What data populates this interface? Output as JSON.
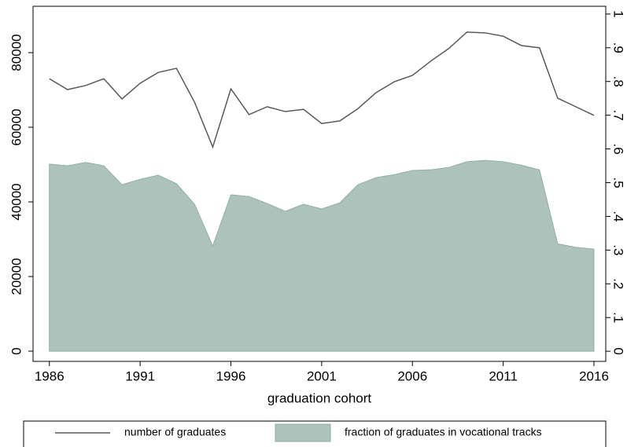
{
  "chart_data": {
    "type": "line-area",
    "x_label": "graduation cohort",
    "x": [
      1986,
      1987,
      1988,
      1989,
      1990,
      1991,
      1992,
      1993,
      1994,
      1995,
      1996,
      1997,
      1998,
      1999,
      2000,
      2001,
      2002,
      2003,
      2004,
      2005,
      2006,
      2007,
      2008,
      2009,
      2010,
      2011,
      2012,
      2013,
      2014,
      2015,
      2016
    ],
    "series": [
      {
        "name": "number of graduates",
        "kind": "line",
        "color": "#595959",
        "values": [
          73000,
          70100,
          71200,
          73000,
          67600,
          71800,
          74700,
          75800,
          66700,
          54700,
          70300,
          63400,
          65500,
          64200,
          64800,
          61000,
          61700,
          65000,
          69300,
          72200,
          73900,
          77700,
          81100,
          85500,
          85300,
          84400,
          81900,
          81300,
          67800,
          65500,
          63200
        ]
      },
      {
        "name": "fraction of graduates in vocational tracks",
        "kind": "area",
        "axis": "y2",
        "color": "#acc2bb",
        "values": [
          0.555,
          0.55,
          0.56,
          0.55,
          0.494,
          0.51,
          0.522,
          0.497,
          0.436,
          0.312,
          0.464,
          0.459,
          0.438,
          0.415,
          0.436,
          0.422,
          0.44,
          0.494,
          0.515,
          0.524,
          0.536,
          0.538,
          0.545,
          0.562,
          0.566,
          0.562,
          0.552,
          0.538,
          0.319,
          0.308,
          0.303
        ]
      }
    ],
    "xlim": [
      1985.1,
      2016.65
    ],
    "xticks": [
      1986,
      1991,
      1996,
      2001,
      2006,
      2011,
      2016
    ],
    "ylim": [
      -2737,
      92420
    ],
    "yticks": [
      0,
      20000,
      40000,
      60000,
      80000
    ],
    "y2lim": [
      -0.03,
      1.023
    ],
    "y2ticks": [
      {
        "value": 0,
        "label": "0"
      },
      {
        "value": 0.1,
        "label": ".1"
      },
      {
        "value": 0.2,
        "label": ".2"
      },
      {
        "value": 0.3,
        "label": ".3"
      },
      {
        "value": 0.4,
        "label": ".4"
      },
      {
        "value": 0.5,
        "label": ".5"
      },
      {
        "value": 0.6,
        "label": ".6"
      },
      {
        "value": 0.7,
        "label": ".7"
      },
      {
        "value": 0.8,
        "label": ".8"
      },
      {
        "value": 0.9,
        "label": ".9"
      },
      {
        "value": 1,
        "label": "1"
      }
    ],
    "legend": "bottom"
  }
}
